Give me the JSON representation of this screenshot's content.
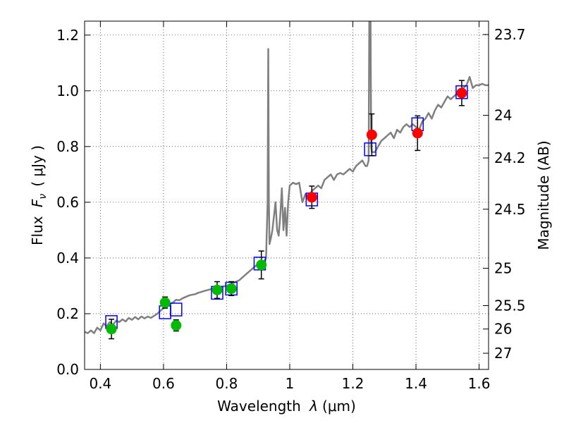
{
  "chart_data": {
    "type": "scatter",
    "xlabel": {
      "prefix": "Wavelength ",
      "symbol": "λ",
      "unit": "(μm)"
    },
    "ylabel": {
      "prefix": "Flux ",
      "symbol": "F",
      "subscript": "ν",
      "unit": "( μJy )"
    },
    "y2label": "Magnitude (AB)",
    "xlim": [
      0.35,
      1.63
    ],
    "ylim": [
      0.0,
      1.25
    ],
    "grid": true,
    "x_ticks": [
      0.4,
      0.6,
      0.8,
      1.0,
      1.2,
      1.4,
      1.6
    ],
    "x_tick_labels": [
      "0.4",
      "0.6",
      "0.8",
      "1",
      "1.2",
      "1.4",
      "1.6"
    ],
    "y_ticks": [
      0.0,
      0.2,
      0.4,
      0.6,
      0.8,
      1.0,
      1.2
    ],
    "y_tick_labels": [
      "0.0",
      "0.2",
      "0.4",
      "0.6",
      "0.8",
      "1.0",
      "1.2"
    ],
    "magnitude_ticks": [
      {
        "label": "23.7",
        "flux": 1.202
      },
      {
        "label": "24",
        "flux": 0.912
      },
      {
        "label": "24.2",
        "flux": 0.759
      },
      {
        "label": "24.5",
        "flux": 0.575
      },
      {
        "label": "25",
        "flux": 0.363
      },
      {
        "label": "25.5",
        "flux": 0.229
      },
      {
        "label": "26",
        "flux": 0.145
      },
      {
        "label": "27",
        "flux": 0.058
      }
    ],
    "colors": {
      "spectrum": "#808080",
      "model_box": "#0000ff",
      "green_points": "#00bb00",
      "red_points": "#ff0000",
      "errorbar": "#000000"
    },
    "series": [
      {
        "kind": "spectrum",
        "color": "#808080",
        "points": [
          [
            0.35,
            0.135
          ],
          [
            0.36,
            0.13
          ],
          [
            0.37,
            0.14
          ],
          [
            0.38,
            0.13
          ],
          [
            0.39,
            0.15
          ],
          [
            0.4,
            0.14
          ],
          [
            0.41,
            0.165
          ],
          [
            0.42,
            0.155
          ],
          [
            0.43,
            0.17
          ],
          [
            0.44,
            0.16
          ],
          [
            0.45,
            0.175
          ],
          [
            0.46,
            0.17
          ],
          [
            0.47,
            0.18
          ],
          [
            0.48,
            0.172
          ],
          [
            0.49,
            0.185
          ],
          [
            0.5,
            0.178
          ],
          [
            0.51,
            0.188
          ],
          [
            0.52,
            0.18
          ],
          [
            0.53,
            0.19
          ],
          [
            0.54,
            0.183
          ],
          [
            0.55,
            0.19
          ],
          [
            0.56,
            0.185
          ],
          [
            0.57,
            0.192
          ],
          [
            0.58,
            0.2
          ],
          [
            0.59,
            0.21
          ],
          [
            0.6,
            0.22
          ],
          [
            0.61,
            0.225
          ],
          [
            0.62,
            0.235
          ],
          [
            0.63,
            0.24
          ],
          [
            0.64,
            0.25
          ],
          [
            0.65,
            0.248
          ],
          [
            0.66,
            0.255
          ],
          [
            0.67,
            0.26
          ],
          [
            0.68,
            0.265
          ],
          [
            0.69,
            0.268
          ],
          [
            0.7,
            0.27
          ],
          [
            0.71,
            0.275
          ],
          [
            0.72,
            0.278
          ],
          [
            0.73,
            0.282
          ],
          [
            0.74,
            0.285
          ],
          [
            0.75,
            0.288
          ],
          [
            0.76,
            0.29
          ],
          [
            0.77,
            0.292
          ],
          [
            0.78,
            0.295
          ],
          [
            0.79,
            0.298
          ],
          [
            0.8,
            0.3
          ],
          [
            0.81,
            0.305
          ],
          [
            0.82,
            0.31
          ],
          [
            0.83,
            0.315
          ],
          [
            0.84,
            0.32
          ],
          [
            0.85,
            0.33
          ],
          [
            0.86,
            0.34
          ],
          [
            0.87,
            0.35
          ],
          [
            0.88,
            0.36
          ],
          [
            0.89,
            0.37
          ],
          [
            0.9,
            0.378
          ],
          [
            0.91,
            0.385
          ],
          [
            0.92,
            0.39
          ],
          [
            0.925,
            0.4
          ],
          [
            0.93,
            0.6
          ],
          [
            0.932,
            1.15
          ],
          [
            0.934,
            0.6
          ],
          [
            0.936,
            0.45
          ],
          [
            0.94,
            0.47
          ],
          [
            0.945,
            0.5
          ],
          [
            0.95,
            0.55
          ],
          [
            0.955,
            0.6
          ],
          [
            0.96,
            0.5
          ],
          [
            0.965,
            0.48
          ],
          [
            0.97,
            0.55
          ],
          [
            0.975,
            0.65
          ],
          [
            0.98,
            0.5
          ],
          [
            0.985,
            0.58
          ],
          [
            0.99,
            0.48
          ],
          [
            0.995,
            0.6
          ],
          [
            1.0,
            0.66
          ],
          [
            1.01,
            0.67
          ],
          [
            1.02,
            0.665
          ],
          [
            1.03,
            0.67
          ],
          [
            1.04,
            0.6
          ],
          [
            1.05,
            0.63
          ],
          [
            1.06,
            0.62
          ],
          [
            1.07,
            0.64
          ],
          [
            1.08,
            0.65
          ],
          [
            1.09,
            0.66
          ],
          [
            1.1,
            0.65
          ],
          [
            1.11,
            0.68
          ],
          [
            1.12,
            0.69
          ],
          [
            1.13,
            0.7
          ],
          [
            1.14,
            0.68
          ],
          [
            1.15,
            0.7
          ],
          [
            1.16,
            0.705
          ],
          [
            1.17,
            0.7
          ],
          [
            1.18,
            0.71
          ],
          [
            1.19,
            0.72
          ],
          [
            1.2,
            0.71
          ],
          [
            1.21,
            0.73
          ],
          [
            1.22,
            0.74
          ],
          [
            1.23,
            0.75
          ],
          [
            1.24,
            0.73
          ],
          [
            1.245,
            0.73
          ],
          [
            1.25,
            0.75
          ],
          [
            1.252,
            1.25
          ],
          [
            1.256,
            1.25
          ],
          [
            1.258,
            0.8
          ],
          [
            1.26,
            0.78
          ],
          [
            1.27,
            0.78
          ],
          [
            1.28,
            0.8
          ],
          [
            1.29,
            0.82
          ],
          [
            1.3,
            0.83
          ],
          [
            1.31,
            0.84
          ],
          [
            1.32,
            0.85
          ],
          [
            1.33,
            0.83
          ],
          [
            1.34,
            0.86
          ],
          [
            1.35,
            0.85
          ],
          [
            1.36,
            0.87
          ],
          [
            1.37,
            0.88
          ],
          [
            1.38,
            0.87
          ],
          [
            1.39,
            0.88
          ],
          [
            1.4,
            0.87
          ],
          [
            1.41,
            0.86
          ],
          [
            1.42,
            0.89
          ],
          [
            1.43,
            0.9
          ],
          [
            1.44,
            0.92
          ],
          [
            1.45,
            0.9
          ],
          [
            1.46,
            0.93
          ],
          [
            1.47,
            0.95
          ],
          [
            1.48,
            0.94
          ],
          [
            1.49,
            0.96
          ],
          [
            1.5,
            0.98
          ],
          [
            1.51,
            0.97
          ],
          [
            1.52,
            0.98
          ],
          [
            1.53,
            0.99
          ],
          [
            1.54,
            1.0
          ],
          [
            1.55,
            1.01
          ],
          [
            1.56,
            1.02
          ],
          [
            1.57,
            1.05
          ],
          [
            1.58,
            1.01
          ],
          [
            1.59,
            1.02
          ],
          [
            1.6,
            1.02
          ],
          [
            1.61,
            1.025
          ],
          [
            1.62,
            1.02
          ],
          [
            1.63,
            1.02
          ]
        ]
      },
      {
        "kind": "model-boxes",
        "color": "#0000ff",
        "points": [
          [
            0.435,
            0.17
          ],
          [
            0.605,
            0.205
          ],
          [
            0.64,
            0.215
          ],
          [
            0.77,
            0.275
          ],
          [
            0.815,
            0.29
          ],
          [
            0.905,
            0.38
          ],
          [
            1.07,
            0.61
          ],
          [
            1.255,
            0.79
          ],
          [
            1.405,
            0.88
          ],
          [
            1.545,
            0.995
          ]
        ]
      },
      {
        "kind": "observed",
        "color": "#00bb00",
        "points": [
          {
            "x": 0.435,
            "y": 0.145,
            "err": 0.035
          },
          {
            "x": 0.605,
            "y": 0.24,
            "err": 0.02
          },
          {
            "x": 0.64,
            "y": 0.158,
            "err": 0.02
          },
          {
            "x": 0.77,
            "y": 0.285,
            "err": 0.03
          },
          {
            "x": 0.815,
            "y": 0.29,
            "err": 0.025
          },
          {
            "x": 0.91,
            "y": 0.375,
            "err": 0.05
          }
        ]
      },
      {
        "kind": "observed",
        "color": "#ff0000",
        "points": [
          {
            "x": 1.07,
            "y": 0.618,
            "err": 0.04
          },
          {
            "x": 1.26,
            "y": 0.842,
            "err": 0.075
          },
          {
            "x": 1.405,
            "y": 0.848,
            "err": 0.062
          },
          {
            "x": 1.545,
            "y": 0.992,
            "err": 0.045
          }
        ]
      }
    ]
  }
}
